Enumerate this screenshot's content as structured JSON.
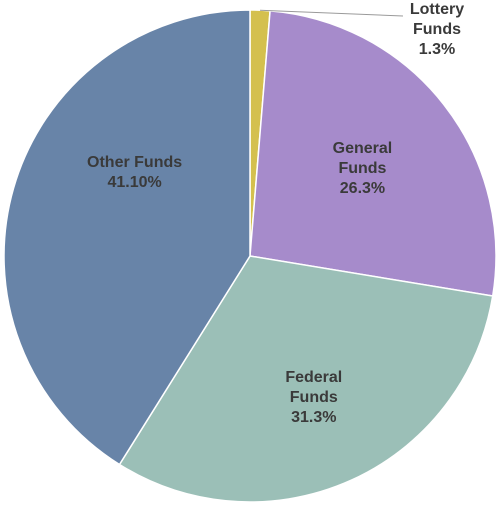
{
  "chart_data": {
    "type": "pie",
    "title": "",
    "slices": [
      {
        "label": "Lottery Funds",
        "value": 1.3,
        "display": "1.3%",
        "color": "#d4c04e"
      },
      {
        "label": "General Funds",
        "value": 26.3,
        "display": "26.3%",
        "color": "#a68bcb"
      },
      {
        "label": "Federal Funds",
        "value": 31.3,
        "display": "31.3%",
        "color": "#9bbfb7"
      },
      {
        "label": "Other Funds",
        "value": 41.1,
        "display": "41.10%",
        "color": "#6884a8"
      }
    ],
    "start_angle_deg": 0,
    "direction": "clockwise",
    "legend": "none"
  }
}
